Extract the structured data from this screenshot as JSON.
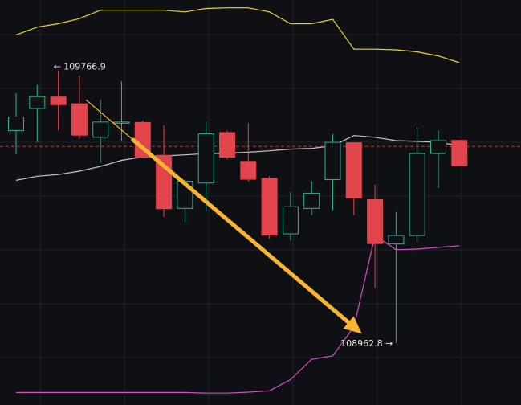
{
  "chart_data": {
    "type": "candlestick",
    "ylim": [
      108780,
      109975
    ],
    "grid": true,
    "high_label": "← 109766.9",
    "low_label": "108962.8 →",
    "colors": {
      "background": "#0f1013",
      "grid": "#1f2227",
      "up": "#2bb58e",
      "down": "#e2464c",
      "upper_band": "#e8d33a",
      "middle_band": "#c9c9c9",
      "lower_band": "#d54ec8",
      "arrow": "#f7b531",
      "price_line": "#e2464c"
    },
    "current_price_line": 109543,
    "candles": [
      {
        "open": 109590,
        "close": 109630,
        "high": 109700,
        "low": 109520,
        "dir": "up"
      },
      {
        "open": 109655,
        "close": 109690,
        "high": 109725,
        "low": 109555,
        "dir": "up"
      },
      {
        "open": 109690,
        "close": 109665,
        "high": 109767,
        "low": 109590,
        "dir": "down"
      },
      {
        "open": 109670,
        "close": 109575,
        "high": 109752,
        "low": 109565,
        "dir": "down"
      },
      {
        "open": 109570,
        "close": 109615,
        "high": 109680,
        "low": 109495,
        "dir": "up"
      },
      {
        "open": 109615,
        "close": 109615,
        "high": 109735,
        "low": 109560,
        "dir": "up"
      },
      {
        "open": 109615,
        "close": 109510,
        "high": 109620,
        "low": 109510,
        "dir": "down"
      },
      {
        "open": 109518,
        "close": 109358,
        "high": 109605,
        "low": 109335,
        "dir": "down"
      },
      {
        "open": 109360,
        "close": 109440,
        "high": 109445,
        "low": 109320,
        "dir": "up"
      },
      {
        "open": 109435,
        "close": 109580,
        "high": 109615,
        "low": 109350,
        "dir": "up"
      },
      {
        "open": 109585,
        "close": 109510,
        "high": 109590,
        "low": 109505,
        "dir": "down"
      },
      {
        "open": 109500,
        "close": 109445,
        "high": 109612,
        "low": 109440,
        "dir": "down"
      },
      {
        "open": 109450,
        "close": 109280,
        "high": 109455,
        "low": 109270,
        "dir": "down"
      },
      {
        "open": 109285,
        "close": 109365,
        "high": 109408,
        "low": 109265,
        "dir": "up"
      },
      {
        "open": 109360,
        "close": 109405,
        "high": 109440,
        "low": 109340,
        "dir": "up"
      },
      {
        "open": 109445,
        "close": 109555,
        "high": 109580,
        "low": 109355,
        "dir": "up"
      },
      {
        "open": 109555,
        "close": 109390,
        "high": 109555,
        "low": 109340,
        "dir": "down"
      },
      {
        "open": 109387,
        "close": 109255,
        "high": 109430,
        "low": 109125,
        "dir": "down"
      },
      {
        "open": 109255,
        "close": 109280,
        "high": 109350,
        "low": 108963,
        "dir": "up"
      },
      {
        "open": 109280,
        "close": 109522,
        "high": 109600,
        "low": 109260,
        "dir": "up"
      },
      {
        "open": 109522,
        "close": 109560,
        "high": 109590,
        "low": 109420,
        "dir": "up"
      },
      {
        "open": 109562,
        "close": 109485,
        "high": 109562,
        "low": 109485,
        "dir": "down"
      }
    ],
    "upper_band": [
      109872,
      109895,
      109905,
      109920,
      109945,
      109945,
      109945,
      109945,
      109940,
      109950,
      109952,
      109952,
      109940,
      109905,
      109905,
      109918,
      109830,
      109830,
      109828,
      109822,
      109810,
      109790
    ],
    "middle_band": [
      109443,
      109455,
      109460,
      109470,
      109484,
      109502,
      109512,
      109515,
      109518,
      109522,
      109523,
      109526,
      109530,
      109535,
      109537,
      109545,
      109575,
      109570,
      109560,
      109558,
      109555,
      109545
    ],
    "lower_band": [
      108817,
      108817,
      108817,
      108817,
      108817,
      108817,
      108817,
      108817,
      108817,
      108815,
      108815,
      108818,
      108822,
      108855,
      108915,
      108925,
      109010,
      109280,
      109238,
      109240,
      109245,
      109250
    ]
  }
}
